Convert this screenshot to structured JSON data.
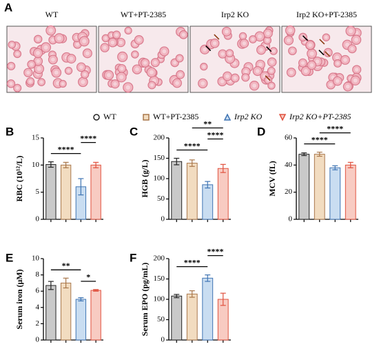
{
  "panel_a": {
    "label": "A",
    "images": [
      "WT",
      "WT+PT-2385",
      "Irp2 KO",
      "Irp2 KO+PT-2385"
    ]
  },
  "legend": [
    {
      "name": "WT",
      "color": "#c9c9c9",
      "edge": "#222222",
      "marker": "circle"
    },
    {
      "name": "WT+PT-2385",
      "color": "#f2dcc0",
      "edge": "#a8764a",
      "marker": "square"
    },
    {
      "name": "Irp2 KO",
      "color": "#c9ddf1",
      "edge": "#3f74b3",
      "marker": "triangle"
    },
    {
      "name": "Irp2 KO+PT-2385",
      "color": "#f8cbc2",
      "edge": "#e0513e",
      "marker": "triangle-down"
    }
  ],
  "chart_data": [
    {
      "type": "bar",
      "panel": "B",
      "ylabel": "RBC (10¹²/L)",
      "ylim": [
        0,
        15
      ],
      "yticks": [
        0,
        5,
        10,
        15
      ],
      "values": [
        10.1,
        10.0,
        6.0,
        10.0
      ],
      "errors": [
        0.5,
        0.5,
        1.5,
        0.5
      ],
      "comparisons": [
        {
          "groups": [
            0,
            2
          ],
          "label": "****"
        },
        {
          "groups": [
            2,
            3
          ],
          "label": "****"
        }
      ]
    },
    {
      "type": "bar",
      "panel": "C",
      "ylabel": "HGB (g/L)",
      "ylim": [
        0,
        200
      ],
      "yticks": [
        0,
        50,
        100,
        150,
        200
      ],
      "values": [
        142,
        138,
        85,
        125
      ],
      "errors": [
        8,
        8,
        8,
        10
      ],
      "comparisons": [
        {
          "groups": [
            0,
            2
          ],
          "label": "****"
        },
        {
          "groups": [
            2,
            3
          ],
          "label": "****"
        },
        {
          "groups": [
            1,
            3
          ],
          "label": "**"
        }
      ]
    },
    {
      "type": "bar",
      "panel": "D",
      "ylabel": "MCV (fL)",
      "ylim": [
        0,
        60
      ],
      "yticks": [
        0,
        20,
        40,
        60
      ],
      "values": [
        48,
        48,
        38,
        40
      ],
      "errors": [
        1,
        1.5,
        1.5,
        2
      ],
      "comparisons": [
        {
          "groups": [
            0,
            2
          ],
          "label": "****"
        },
        {
          "groups": [
            1,
            3
          ],
          "label": "****"
        }
      ]
    },
    {
      "type": "bar",
      "panel": "E",
      "ylabel": "Serum iron (μM)",
      "ylim": [
        0,
        10
      ],
      "yticks": [
        0,
        2,
        4,
        6,
        8,
        10
      ],
      "values": [
        6.7,
        7.0,
        5.0,
        6.1
      ],
      "errors": [
        0.5,
        0.6,
        0.2,
        0.1
      ],
      "comparisons": [
        {
          "groups": [
            0,
            2
          ],
          "label": "**"
        },
        {
          "groups": [
            2,
            3
          ],
          "label": "*"
        }
      ]
    },
    {
      "type": "bar",
      "panel": "F",
      "ylabel": "Serum EPO (pg/mL)",
      "ylim": [
        0,
        200
      ],
      "yticks": [
        0,
        50,
        100,
        150,
        200
      ],
      "values": [
        108,
        113,
        152,
        100
      ],
      "errors": [
        4,
        8,
        8,
        15
      ],
      "comparisons": [
        {
          "groups": [
            0,
            2
          ],
          "label": "****"
        },
        {
          "groups": [
            2,
            3
          ],
          "label": "****"
        }
      ]
    }
  ]
}
